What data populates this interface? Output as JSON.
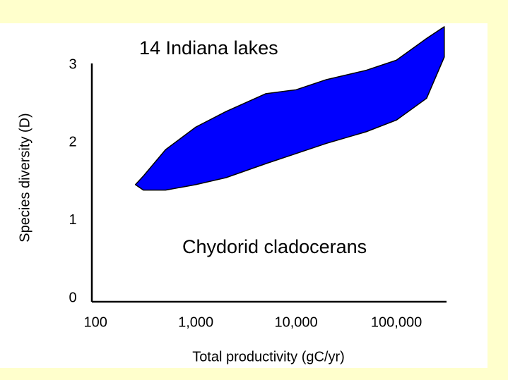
{
  "chart_data": {
    "type": "range-area",
    "annotations": [
      "14 Indiana lakes",
      "Chydorid cladocerans"
    ],
    "xlabel": "Total productivity (gC/yr)",
    "ylabel": "Species diversity (D)",
    "x": [
      250,
      300,
      500,
      1000,
      2000,
      5000,
      10000,
      20000,
      50000,
      100000,
      200000,
      300000
    ],
    "series": [
      {
        "color": "#0000ff",
        "values": [
          1.46,
          1.57,
          1.91,
          2.2,
          2.4,
          2.63,
          2.68,
          2.81,
          2.93,
          3.06,
          3.34,
          3.49
        ]
      },
      {
        "color": "#0000ff",
        "values": [
          1.46,
          1.39,
          1.39,
          1.46,
          1.55,
          1.73,
          1.86,
          1.99,
          2.14,
          2.29,
          2.57,
          3.1
        ]
      }
    ],
    "xscale": "log",
    "xlim": [
      92,
      316000
    ],
    "xticks": [
      100,
      {
        "value": 1000,
        "label": "1,000"
      },
      {
        "value": 10000,
        "label": "10,000"
      },
      {
        "value": 100000,
        "label": "100,000"
      }
    ],
    "ylim": [
      0,
      3
    ],
    "yticks": [
      0,
      1,
      2,
      3
    ]
  }
}
